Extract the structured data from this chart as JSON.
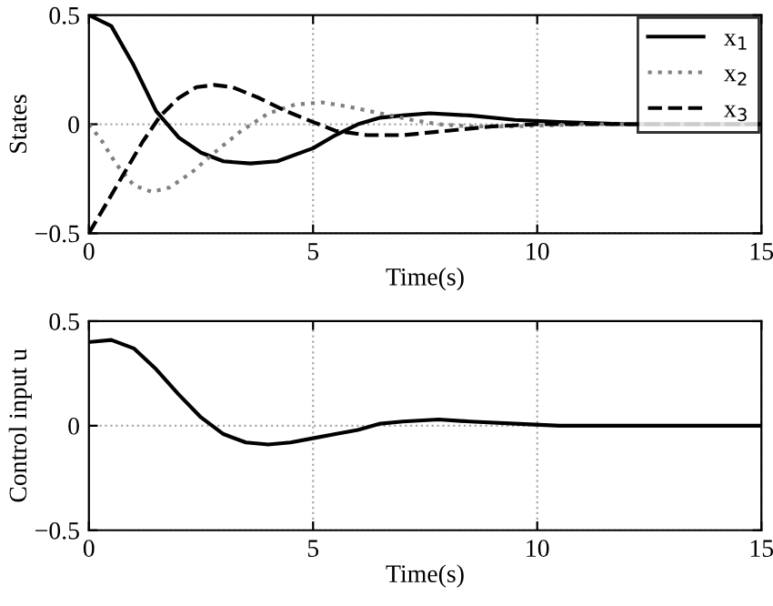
{
  "chart_data": [
    {
      "type": "line",
      "xlabel": "Time(s)",
      "ylabel": "States",
      "xlim": [
        0,
        15
      ],
      "ylim": [
        -0.5,
        0.5
      ],
      "xticks": [
        0,
        5,
        10,
        15
      ],
      "yticks": [
        {
          "value": -0.5,
          "label": "−0.5"
        },
        0,
        0.5
      ],
      "grid": true,
      "legend": "top right",
      "series": [
        {
          "name": "x$_{1}$",
          "color": "#000000",
          "line_style": "solid",
          "x": [
            0,
            0.5,
            1,
            1.5,
            2,
            2.5,
            3,
            3.6,
            4.2,
            5,
            5.5,
            6,
            6.5,
            7,
            7.6,
            8.5,
            9.5,
            10.5,
            12,
            15
          ],
          "values": [
            0.5,
            0.45,
            0.27,
            0.06,
            -0.06,
            -0.13,
            -0.17,
            -0.18,
            -0.17,
            -0.11,
            -0.05,
            0,
            0.03,
            0.04,
            0.05,
            0.04,
            0.02,
            0.01,
            0,
            0
          ]
        },
        {
          "name": "x$_{2}$",
          "color": "#808080",
          "line_style": "dotted",
          "x": [
            0,
            0.3,
            0.6,
            1,
            1.4,
            1.8,
            2.3,
            2.8,
            3.4,
            4,
            4.6,
            5.2,
            5.8,
            6.5,
            7.2,
            7.8,
            8.5,
            9.5,
            11,
            15
          ],
          "values": [
            0,
            -0.08,
            -0.18,
            -0.28,
            -0.31,
            -0.29,
            -0.22,
            -0.13,
            -0.03,
            0.05,
            0.09,
            0.1,
            0.08,
            0.05,
            0.02,
            0,
            -0.01,
            -0.01,
            0,
            0
          ]
        },
        {
          "name": "x$_{3}$",
          "color": "#000000",
          "line_style": "dashed",
          "x": [
            0,
            0.4,
            0.8,
            1.2,
            1.6,
            2,
            2.4,
            2.8,
            3.2,
            3.8,
            4.4,
            5,
            5.5,
            6.2,
            7,
            8,
            9,
            10,
            15
          ],
          "values": [
            -0.5,
            -0.36,
            -0.22,
            -0.08,
            0.04,
            0.12,
            0.17,
            0.18,
            0.17,
            0.12,
            0.06,
            0.01,
            -0.03,
            -0.05,
            -0.05,
            -0.03,
            -0.01,
            0,
            0
          ]
        }
      ]
    },
    {
      "type": "line",
      "xlabel": "Time(s)",
      "ylabel": "Control input u",
      "xlim": [
        0,
        15
      ],
      "ylim": [
        -0.5,
        0.5
      ],
      "xticks": [
        0,
        5,
        10,
        15
      ],
      "yticks": [
        {
          "value": -0.5,
          "label": "−0.5"
        },
        0,
        0.5
      ],
      "grid": true,
      "series": [
        {
          "color": "#000000",
          "line_style": "solid",
          "x": [
            0,
            0.5,
            1,
            1.5,
            2,
            2.5,
            3,
            3.5,
            4,
            4.5,
            5,
            5.5,
            6,
            6.5,
            7,
            7.8,
            8.5,
            9.5,
            10.5,
            12,
            15
          ],
          "values": [
            0.4,
            0.41,
            0.37,
            0.27,
            0.15,
            0.04,
            -0.04,
            -0.08,
            -0.09,
            -0.08,
            -0.06,
            -0.04,
            -0.02,
            0.01,
            0.02,
            0.03,
            0.02,
            0.01,
            0,
            0,
            0
          ]
        }
      ]
    }
  ]
}
